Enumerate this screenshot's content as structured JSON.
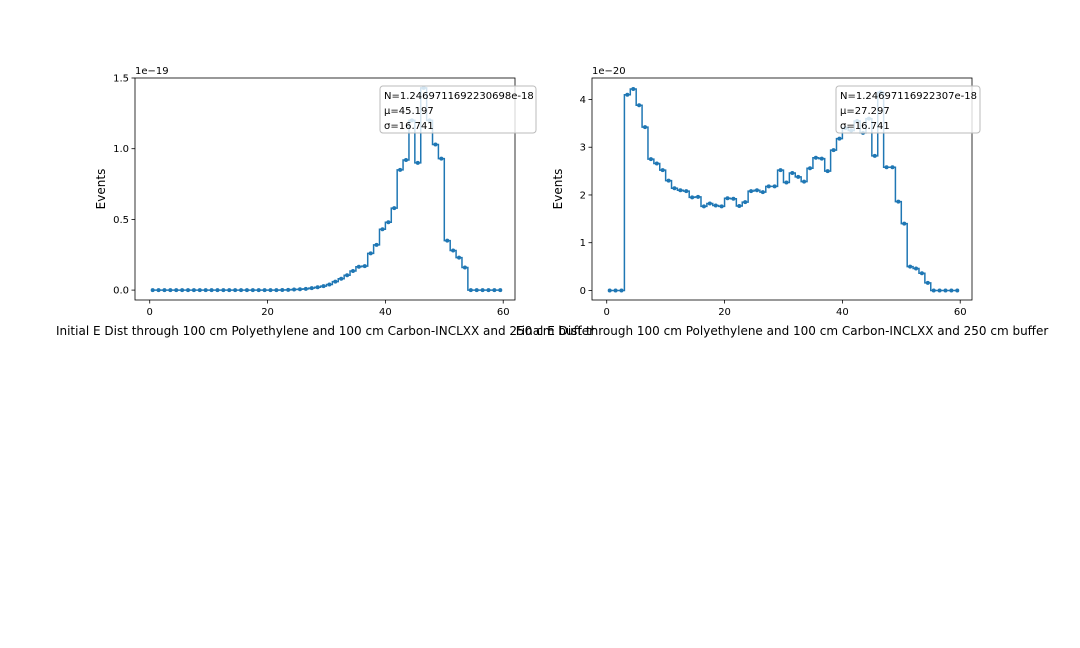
{
  "chart_data": [
    {
      "type": "line",
      "title": "",
      "xlabel": "Initial E Dist through 100 cm Polyethylene and 100 cm Carbon-INCLXX and 250 cm buffer",
      "ylabel": "Events",
      "offset_text": "1e−19",
      "xlim": [
        -2.5,
        62
      ],
      "ylim": [
        -0.07,
        1.5
      ],
      "xticks": [
        0,
        20,
        40,
        60
      ],
      "xtick_labels": [
        "0",
        "20",
        "40",
        "60"
      ],
      "yticks": [
        0.0,
        0.5,
        1.0,
        1.5
      ],
      "ytick_labels": [
        "0.0",
        "0.5",
        "1.0",
        "1.5"
      ],
      "grid": false,
      "legend": "top-right",
      "annotation": [
        "N=1.2469711692230698e-18",
        "μ=45.197",
        "σ=16.741"
      ],
      "color": "#1f77b4",
      "series": [
        {
          "x": [
            0.5,
            1.5,
            2.5,
            3.5,
            4.5,
            5.5,
            6.5,
            7.5,
            8.5,
            9.5,
            10.5,
            11.5,
            12.5,
            13.5,
            14.5,
            15.5,
            16.5,
            17.5,
            18.5,
            19.5,
            20.5,
            21.5,
            22.5,
            23.5,
            24.5,
            25.5,
            26.5,
            27.5,
            28.5,
            29.5,
            30.5,
            31.5,
            32.5,
            33.5,
            34.5,
            35.5,
            36.5,
            37.5,
            38.5,
            39.5,
            40.5,
            41.5,
            42.5,
            43.5,
            44.5,
            45.5,
            46.5,
            47.5,
            48.5,
            49.5,
            50.5,
            51.5,
            52.5,
            53.5,
            54.5,
            55.5,
            56.5,
            57.5,
            58.5,
            59.5
          ],
          "y": [
            0,
            0,
            0,
            0,
            0,
            0,
            0,
            0,
            0,
            0,
            0,
            0,
            0,
            0,
            0,
            0,
            0,
            0,
            0,
            0,
            0,
            0,
            0.001,
            0.002,
            0.004,
            0.006,
            0.009,
            0.014,
            0.02,
            0.028,
            0.04,
            0.06,
            0.08,
            0.105,
            0.135,
            0.165,
            0.17,
            0.26,
            0.32,
            0.43,
            0.48,
            0.58,
            0.85,
            0.92,
            1.2,
            0.9,
            1.43,
            1.2,
            1.03,
            0.93,
            0.35,
            0.28,
            0.23,
            0.16,
            0,
            0,
            0,
            0,
            0,
            0
          ]
        }
      ]
    },
    {
      "type": "line",
      "title": "",
      "xlabel": "Final E Dist through 100 cm Polyethylene and 100 cm Carbon-INCLXX and 250 cm buffer",
      "ylabel": "Events",
      "offset_text": "1e−20",
      "xlim": [
        -2.5,
        62
      ],
      "ylim": [
        -0.2,
        4.45
      ],
      "xticks": [
        0,
        20,
        40,
        60
      ],
      "xtick_labels": [
        "0",
        "20",
        "40",
        "60"
      ],
      "yticks": [
        0,
        1,
        2,
        3,
        4
      ],
      "ytick_labels": [
        "0",
        "1",
        "2",
        "3",
        "4"
      ],
      "grid": false,
      "legend": "top-right",
      "annotation": [
        "N=1.24697116922307e-18",
        "μ=27.297",
        "σ=16.741"
      ],
      "color": "#1f77b4",
      "series": [
        {
          "x": [
            0.5,
            1.5,
            2.5,
            3.5,
            4.5,
            5.5,
            6.5,
            7.5,
            8.5,
            9.5,
            10.5,
            11.5,
            12.5,
            13.5,
            14.5,
            15.5,
            16.5,
            17.5,
            18.5,
            19.5,
            20.5,
            21.5,
            22.5,
            23.5,
            24.5,
            25.5,
            26.5,
            27.5,
            28.5,
            29.5,
            30.5,
            31.5,
            32.5,
            33.5,
            34.5,
            35.5,
            36.5,
            37.5,
            38.5,
            39.5,
            40.5,
            41.5,
            42.5,
            43.5,
            44.5,
            45.5,
            46.5,
            47.5,
            48.5,
            49.5,
            50.5,
            51.5,
            52.5,
            53.5,
            54.5,
            55.5,
            56.5,
            57.5,
            58.5,
            59.5
          ],
          "y": [
            0,
            0,
            0,
            4.1,
            4.22,
            3.88,
            3.42,
            2.75,
            2.66,
            2.52,
            2.3,
            2.14,
            2.1,
            2.08,
            1.95,
            1.96,
            1.76,
            1.82,
            1.78,
            1.76,
            1.93,
            1.92,
            1.77,
            1.85,
            2.08,
            2.1,
            2.06,
            2.18,
            2.18,
            2.52,
            2.26,
            2.46,
            2.38,
            2.28,
            2.56,
            2.78,
            2.76,
            2.5,
            2.94,
            3.18,
            3.4,
            3.35,
            3.55,
            3.3,
            3.6,
            2.82,
            4.15,
            2.58,
            2.58,
            1.86,
            1.4,
            0.5,
            0.46,
            0.36,
            0.16,
            0,
            0,
            0,
            0,
            0
          ]
        }
      ]
    }
  ]
}
